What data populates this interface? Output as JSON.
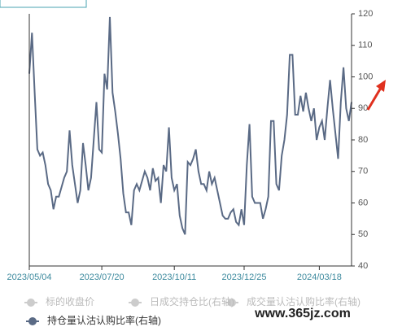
{
  "chart_data": {
    "type": "line",
    "categories": [
      "2023/05/04",
      null,
      null,
      null,
      null,
      null,
      null,
      null,
      null,
      null,
      null,
      null,
      null,
      null,
      null,
      null,
      null,
      null,
      null,
      null,
      null,
      null,
      null,
      null,
      null,
      null,
      null,
      "2023/07/20",
      null,
      null,
      null,
      null,
      null,
      null,
      null,
      null,
      null,
      null,
      null,
      null,
      null,
      null,
      null,
      null,
      null,
      null,
      null,
      null,
      null,
      null,
      null,
      null,
      null,
      null,
      "2023/10/11",
      null,
      null,
      null,
      null,
      null,
      null,
      null,
      null,
      null,
      null,
      null,
      null,
      null,
      null,
      null,
      null,
      null,
      null,
      null,
      null,
      null,
      null,
      null,
      null,
      null,
      "2023/12/25",
      null,
      null,
      null,
      null,
      null,
      null,
      null,
      null,
      null,
      null,
      null,
      null,
      null,
      null,
      null,
      null,
      null,
      null,
      null,
      null,
      null,
      null,
      null,
      null,
      null,
      null,
      null,
      "2024/03/18",
      null,
      null,
      null,
      null,
      null,
      null,
      null,
      null,
      null,
      null,
      null,
      null
    ],
    "series": [
      {
        "name": "持仓量认沽认购比率(右轴)",
        "color": "#5a6a85",
        "axis": "y2",
        "values": [
          101,
          114,
          95,
          77,
          75,
          76,
          72,
          66,
          64,
          58,
          62,
          62,
          65,
          68,
          70,
          83,
          72,
          66,
          60,
          64,
          79,
          72,
          64,
          68,
          80,
          92,
          77,
          76,
          101,
          96,
          119,
          95,
          89,
          82,
          74,
          63,
          57,
          57,
          53,
          64,
          66,
          64,
          67,
          70,
          68,
          64,
          71,
          67,
          68,
          60,
          72,
          70,
          84,
          68,
          64,
          66,
          56,
          52,
          50,
          73,
          72,
          74,
          77,
          70,
          66,
          66,
          64,
          70,
          66,
          68,
          64,
          60,
          56,
          55,
          55,
          57,
          58,
          54,
          53,
          58,
          53,
          72,
          85,
          62,
          60,
          60,
          60,
          55,
          58,
          62,
          86,
          86,
          66,
          64,
          75,
          80,
          88,
          107,
          107,
          88,
          88,
          94,
          89,
          95,
          90,
          86,
          90,
          80,
          84,
          86,
          80,
          90,
          99,
          90,
          82,
          74,
          92,
          103,
          90,
          86,
          92
        ]
      }
    ],
    "hidden_series": [
      {
        "name": "标的收盘价",
        "color": "#cccccc"
      },
      {
        "name": "日成交持仓比(右轴)",
        "color": "#cccccc"
      },
      {
        "name": "成交量认沽认购比率(右轴)",
        "color": "#cccccc"
      }
    ],
    "y2lim": [
      40,
      120
    ],
    "y2ticks": [
      40,
      50,
      60,
      70,
      80,
      90,
      100,
      110,
      120
    ],
    "watermark": "www.365jz.com"
  }
}
